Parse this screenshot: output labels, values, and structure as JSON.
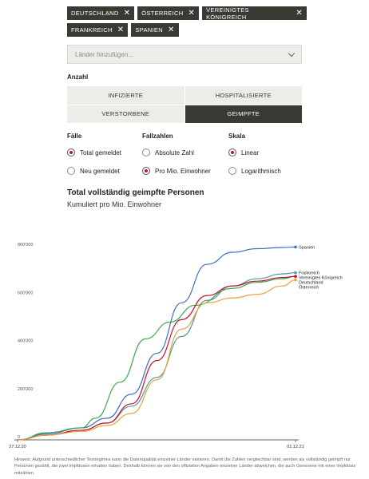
{
  "chips": [
    {
      "label": "DEUTSCHLAND"
    },
    {
      "label": "ÖSTERREICH"
    },
    {
      "label": "VEREINIGTES KÖNIGREICH"
    },
    {
      "label": "FRANKREICH"
    },
    {
      "label": "SPANIEN"
    }
  ],
  "select": {
    "placeholder": "Länder hinzufügen..."
  },
  "anzahl": {
    "label": "Anzahl",
    "options": [
      "INFIZIERTE",
      "HOSPITALISIERTE",
      "VERSTORBENE",
      "GEIMPFTE"
    ],
    "active": "GEIMPFTE"
  },
  "faelle": {
    "label": "Fälle",
    "options": [
      "Total gemeldet",
      "Neu gemeldet"
    ],
    "selected": "Total gemeldet"
  },
  "fallzahlen": {
    "label": "Fallzahlen",
    "options": [
      "Absolute Zahl",
      "Pro Mio. Einwohner"
    ],
    "selected": "Pro Mio. Einwohner"
  },
  "skala": {
    "label": "Skala",
    "options": [
      "Linear",
      "Logarithmisch"
    ],
    "selected": "Linear"
  },
  "accent_color": "#c8102e",
  "chart_data": {
    "type": "line",
    "title": "Total vollständig geimpfte Personen",
    "subtitle": "Kumuliert pro Mio. Einwohner",
    "x_range": [
      "2020-12-27",
      "2021-12-01"
    ],
    "x_tick_labels": [
      "27.12.20",
      "01.12.21"
    ],
    "ylim": [
      0,
      800000
    ],
    "y_tick_labels": [
      "0",
      "200'000",
      "400'000",
      "600'000",
      "800'000"
    ],
    "y_ticks": [
      0,
      200000,
      400000,
      600000,
      800000
    ],
    "grid": "none",
    "legend": "line-end labels",
    "series": [
      {
        "name": "Spanien",
        "color": "#3b6fc4",
        "x": [
          "2020-12-27",
          "2021-02-01",
          "2021-03-15",
          "2021-04-15",
          "2021-05-15",
          "2021-06-15",
          "2021-07-15",
          "2021-08-15",
          "2021-09-15",
          "2021-10-15",
          "2021-11-15",
          "2021-12-01"
        ],
        "values": [
          0,
          25000,
          50000,
          90000,
          190000,
          360000,
          570000,
          730000,
          780000,
          795000,
          800000,
          802000
        ]
      },
      {
        "name": "Frankreich",
        "color": "#4f9a9a",
        "x": [
          "2020-12-27",
          "2021-02-01",
          "2021-03-15",
          "2021-04-15",
          "2021-05-15",
          "2021-06-15",
          "2021-07-15",
          "2021-08-15",
          "2021-09-15",
          "2021-10-15",
          "2021-11-15",
          "2021-12-01"
        ],
        "values": [
          0,
          20000,
          40000,
          70000,
          140000,
          260000,
          430000,
          580000,
          640000,
          670000,
          690000,
          695000
        ]
      },
      {
        "name": "Vereinigtes Königreich",
        "color": "#3aa84b",
        "x": [
          "2020-12-27",
          "2021-02-01",
          "2021-03-15",
          "2021-04-01",
          "2021-05-01",
          "2021-06-01",
          "2021-07-01",
          "2021-08-01",
          "2021-09-15",
          "2021-10-15",
          "2021-11-15",
          "2021-12-01"
        ],
        "values": [
          0,
          30000,
          50000,
          90000,
          240000,
          420000,
          490000,
          560000,
          630000,
          655000,
          670000,
          680000
        ]
      },
      {
        "name": "Deutschland",
        "color": "#c8102e",
        "x": [
          "2020-12-27",
          "2021-02-01",
          "2021-03-15",
          "2021-04-15",
          "2021-05-15",
          "2021-06-15",
          "2021-07-15",
          "2021-08-15",
          "2021-09-15",
          "2021-10-15",
          "2021-11-15",
          "2021-12-01"
        ],
        "values": [
          0,
          20000,
          40000,
          70000,
          150000,
          330000,
          500000,
          600000,
          640000,
          660000,
          675000,
          680000
        ]
      },
      {
        "name": "Österreich",
        "color": "#e8a13c",
        "x": [
          "2020-12-27",
          "2021-02-01",
          "2021-03-15",
          "2021-04-15",
          "2021-05-15",
          "2021-06-15",
          "2021-07-15",
          "2021-08-15",
          "2021-09-15",
          "2021-10-15",
          "2021-11-15",
          "2021-12-01"
        ],
        "values": [
          0,
          20000,
          35000,
          60000,
          110000,
          250000,
          460000,
          570000,
          590000,
          605000,
          640000,
          665000
        ]
      }
    ]
  },
  "note": "Hinweis: Aufgrund unterschiedlicher Testregimes kann die Datenqualität einzelner Länder variieren. Damit die Zahlen vergleichbar sind, werden als vollständig geimpft nur Personen gezählt, die zwei Impfdosen erhalten haben. Deshalb können sie von den offiziellen Angaben einzelner Länder abweichen, die auch Genesene mit einer Impfdosis mitzählen."
}
